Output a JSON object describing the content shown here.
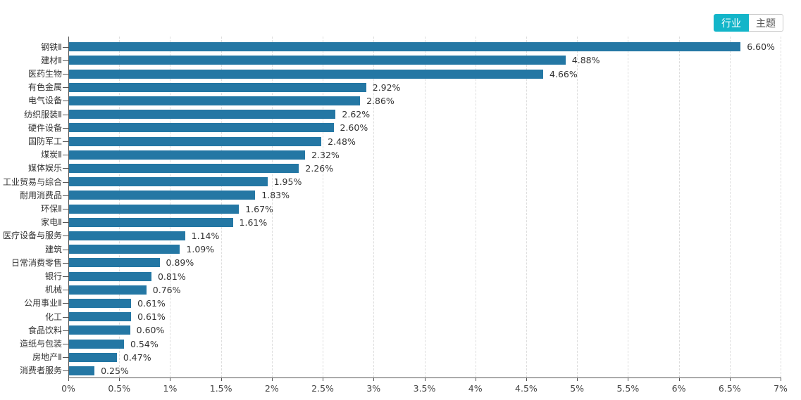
{
  "toolbar": {
    "industry_label": "行业",
    "theme_label": "主题",
    "active_bg": "#13b5c9"
  },
  "chart_data": {
    "type": "bar",
    "orientation": "horizontal",
    "title": "",
    "xlabel": "",
    "ylabel": "",
    "xlim": [
      0,
      7
    ],
    "grid": true,
    "legend": "none",
    "bar_color": "#2477a4",
    "categories": [
      "钢铁Ⅱ",
      "建材Ⅱ",
      "医药生物",
      "有色金属",
      "电气设备",
      "纺织服装Ⅱ",
      "硬件设备",
      "国防军工",
      "煤炭Ⅱ",
      "媒体娱乐",
      "工业贸易与综合",
      "耐用消费品",
      "环保Ⅱ",
      "家电Ⅱ",
      "医疗设备与服务",
      "建筑",
      "日常消费零售",
      "银行",
      "机械",
      "公用事业Ⅱ",
      "化工",
      "食品饮料",
      "造纸与包装",
      "房地产Ⅱ",
      "消费者服务"
    ],
    "values": [
      6.6,
      4.88,
      4.66,
      2.92,
      2.86,
      2.62,
      2.6,
      2.48,
      2.32,
      2.26,
      1.95,
      1.83,
      1.67,
      1.61,
      1.14,
      1.09,
      0.89,
      0.81,
      0.76,
      0.61,
      0.61,
      0.6,
      0.54,
      0.47,
      0.25
    ],
    "value_labels": [
      "6.60%",
      "4.88%",
      "4.66%",
      "2.92%",
      "2.86%",
      "2.62%",
      "2.60%",
      "2.48%",
      "2.32%",
      "2.26%",
      "1.95%",
      "1.83%",
      "1.67%",
      "1.61%",
      "1.14%",
      "1.09%",
      "0.89%",
      "0.81%",
      "0.76%",
      "0.61%",
      "0.61%",
      "0.60%",
      "0.54%",
      "0.47%",
      "0.25%"
    ],
    "x_ticks": [
      "0%",
      "0.5%",
      "1%",
      "1.5%",
      "2%",
      "2.5%",
      "3%",
      "3.5%",
      "4%",
      "4.5%",
      "5%",
      "5.5%",
      "6%",
      "6.5%",
      "7%"
    ],
    "x_tick_values": [
      0,
      0.5,
      1,
      1.5,
      2,
      2.5,
      3,
      3.5,
      4,
      4.5,
      5,
      5.5,
      6,
      6.5,
      7
    ]
  }
}
